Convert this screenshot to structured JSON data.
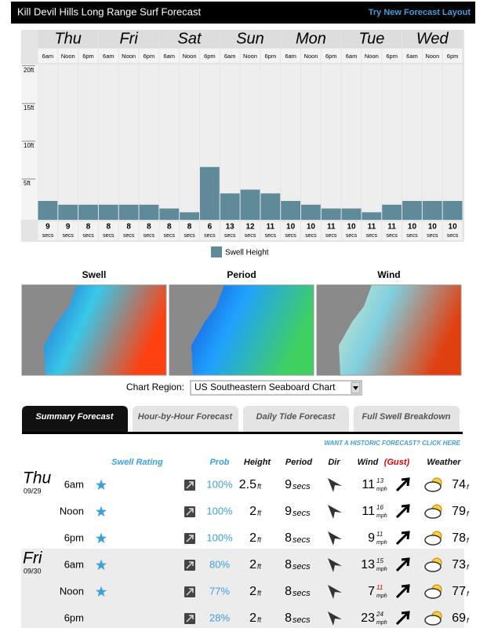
{
  "header": {
    "title": "Kill Devil Hills Long Range Surf Forecast",
    "link": "Try New Forecast Layout"
  },
  "chart_data": {
    "type": "bar",
    "days": [
      "Thu",
      "Fri",
      "Sat",
      "Sun",
      "Mon",
      "Tue",
      "Wed"
    ],
    "categories": [
      "6am",
      "Noon",
      "6pm",
      "6am",
      "Noon",
      "6pm",
      "6am",
      "Noon",
      "6pm",
      "6am",
      "Noon",
      "6pm",
      "6am",
      "Noon",
      "6pm",
      "6am",
      "Noon",
      "6pm",
      "6am",
      "Noon",
      "6pm"
    ],
    "series": [
      {
        "name": "Swell Height",
        "color": "#5f8a99",
        "values": [
          2.5,
          2,
          2,
          2,
          2,
          2,
          1.5,
          1,
          7,
          3.5,
          4,
          3.5,
          2.5,
          2,
          1.5,
          1.5,
          1,
          2,
          2.5,
          2.5,
          2.5
        ]
      }
    ],
    "periods": [
      9,
      9,
      8,
      8,
      8,
      8,
      8,
      8,
      6,
      13,
      12,
      11,
      10,
      10,
      11,
      10,
      11,
      11,
      10,
      10,
      10
    ],
    "period_unit": "secs",
    "ylim": [
      0,
      20.6
    ],
    "yticks": [
      {
        "value": 5,
        "label": "5ft"
      },
      {
        "value": 10,
        "label": "10ft"
      },
      {
        "value": 15,
        "label": "15ft"
      },
      {
        "value": 20,
        "label": "20ft"
      }
    ],
    "legend": "bottom"
  },
  "maps": {
    "titles": [
      "Swell",
      "Period",
      "Wind"
    ],
    "region_label": "Chart Region:",
    "region": "US Southeastern Seaboard Chart"
  },
  "tabs": [
    "Summary Forecast",
    "Hour-by-Hour Forecast",
    "Daily Tide Forecast",
    "Full Swell Breakdown"
  ],
  "historic_link": "WANT A HISTORIC FORECAST? CLICK HERE",
  "table": {
    "columns": {
      "rating": "Swell Rating",
      "prob": "Prob",
      "height": "Height",
      "period": "Period",
      "dir": "Dir",
      "wind": "Wind",
      "gust": "(Gust)",
      "weather": "Weather"
    },
    "units": {
      "height": "ft",
      "period": "secs",
      "wind": "mph",
      "temp": "f"
    },
    "days": [
      {
        "day": "Thu",
        "date": "09/29",
        "rows": [
          {
            "time": "6am",
            "stars": 1,
            "prob": "100%",
            "height": 2.5,
            "period": 9,
            "wind": 11,
            "gust": 13,
            "temp": 74
          },
          {
            "time": "Noon",
            "stars": 1,
            "prob": "100%",
            "height": 2,
            "period": 9,
            "wind": 11,
            "gust": 16,
            "temp": 79
          },
          {
            "time": "6pm",
            "stars": 1,
            "prob": "100%",
            "height": 2,
            "period": 8,
            "wind": 9,
            "gust": 11,
            "temp": 78
          }
        ]
      },
      {
        "day": "Fri",
        "date": "09/30",
        "rows": [
          {
            "time": "6am",
            "stars": 1,
            "prob": "80%",
            "height": 2,
            "period": 8,
            "wind": 13,
            "gust": 15,
            "temp": 73
          },
          {
            "time": "Noon",
            "stars": 1,
            "prob": "77%",
            "height": 2,
            "period": 8,
            "wind": 7,
            "gust": 11,
            "gust_color": "#dd0000",
            "temp": 77
          },
          {
            "time": "6pm",
            "stars": 0,
            "prob": "28%",
            "height": 2,
            "period": 8,
            "wind": 23,
            "gust": 24,
            "temp": 69
          }
        ]
      }
    ]
  }
}
